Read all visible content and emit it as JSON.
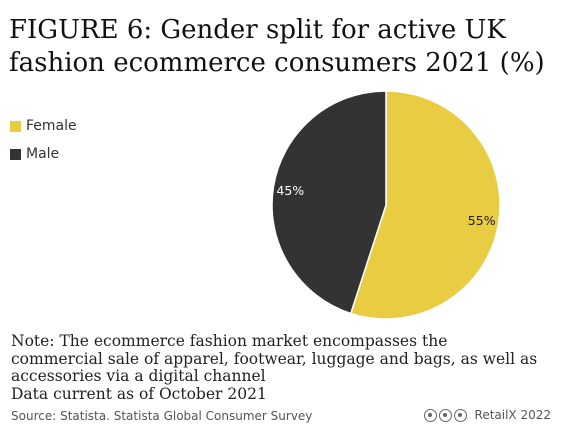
{
  "title": "FIGURE 6: Gender split for active UK fashion ecommerce consumers 2021 (%)",
  "legend": [
    {
      "label": "Female",
      "color": "#e8cc42"
    },
    {
      "label": "Male",
      "color": "#333333"
    }
  ],
  "note_lines": [
    "Note: The ecommerce fashion market encompasses the",
    "commercial sale of apparel, footwear, luggage and bags, as well as",
    "accessories via a digital channel",
    "Data current as of October 2021"
  ],
  "source": "Source: Statista. Statista Global Consumer Survey",
  "credit": "RetailX 2022",
  "chart_data": {
    "type": "pie",
    "categories": [
      "Female",
      "Male"
    ],
    "values": [
      55,
      45
    ],
    "labels": [
      "55%",
      "45%"
    ],
    "colors": [
      "#e8cc42",
      "#333333"
    ],
    "legend_position": "top-left"
  }
}
